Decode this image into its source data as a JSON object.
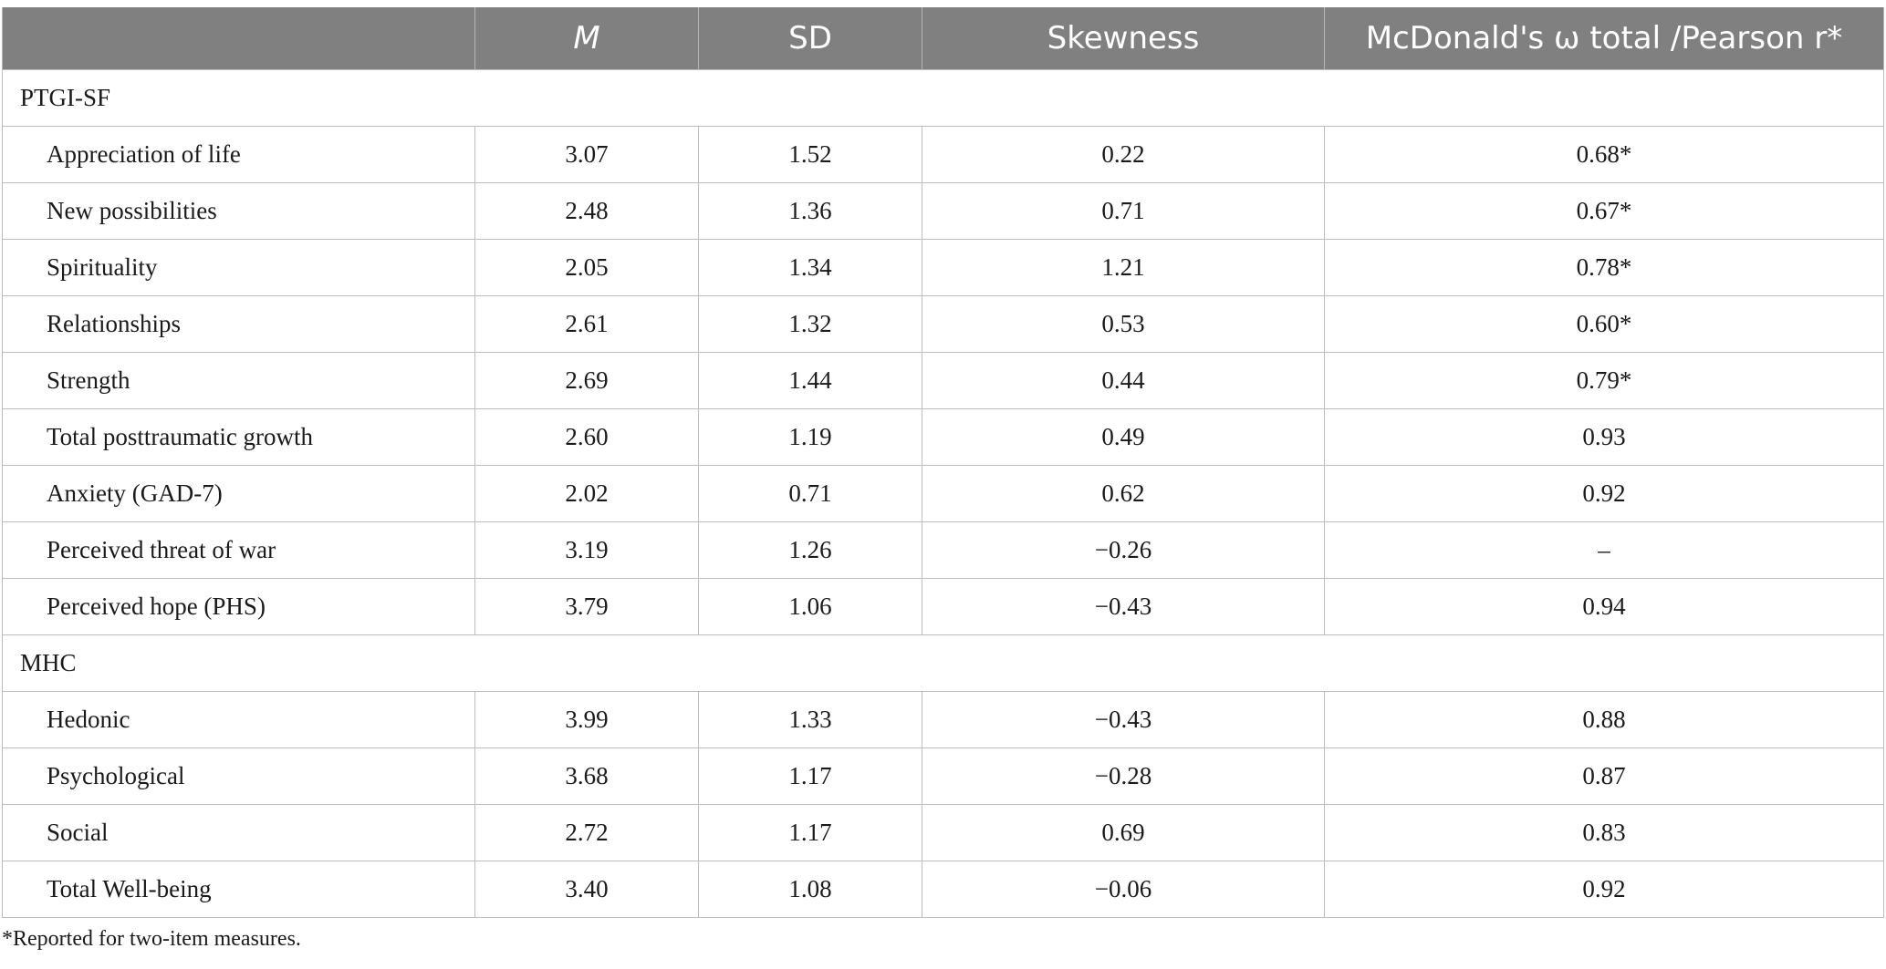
{
  "columns": [
    "",
    "M",
    "SD",
    "Skewness",
    "McDonald's ω total /Pearson r*"
  ],
  "sections": [
    {
      "title": "PTGI-SF",
      "rows": [
        [
          "Appreciation of life",
          "3.07",
          "1.52",
          "0.22",
          "0.68*"
        ],
        [
          "New possibilities",
          "2.48",
          "1.36",
          "0.71",
          "0.67*"
        ],
        [
          "Spirituality",
          "2.05",
          "1.34",
          "1.21",
          "0.78*"
        ],
        [
          "Relationships",
          "2.61",
          "1.32",
          "0.53",
          "0.60*"
        ],
        [
          "Strength",
          "2.69",
          "1.44",
          "0.44",
          "0.79*"
        ],
        [
          "Total posttraumatic growth",
          "2.60",
          "1.19",
          "0.49",
          "0.93"
        ],
        [
          "Anxiety (GAD-7)",
          "2.02",
          "0.71",
          "0.62",
          "0.92"
        ],
        [
          "Perceived threat of war",
          "3.19",
          "1.26",
          "−0.26",
          "–"
        ],
        [
          "Perceived hope (PHS)",
          "3.79",
          "1.06",
          "−0.43",
          "0.94"
        ]
      ]
    },
    {
      "title": "MHC",
      "rows": [
        [
          "Hedonic",
          "3.99",
          "1.33",
          "−0.43",
          "0.88"
        ],
        [
          "Psychological",
          "3.68",
          "1.17",
          "−0.28",
          "0.87"
        ],
        [
          "Social",
          "2.72",
          "1.17",
          "0.69",
          "0.83"
        ],
        [
          "Total Well-being",
          "3.40",
          "1.08",
          "−0.06",
          "0.92"
        ]
      ]
    }
  ],
  "footnote": "*Reported for two-item measures."
}
